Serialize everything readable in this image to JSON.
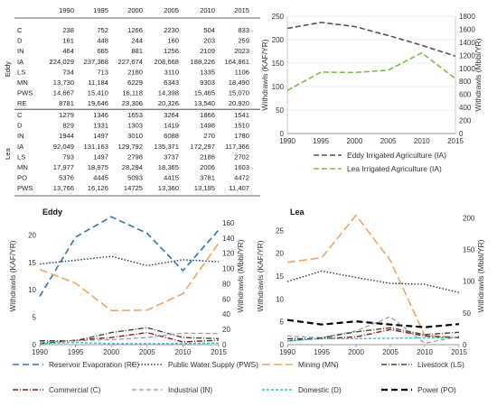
{
  "table": {
    "years": [
      "1990",
      "1995",
      "2000",
      "2005",
      "2010",
      "2015"
    ],
    "groups": [
      {
        "name": "Eddy",
        "rows": [
          {
            "label": "C",
            "values": [
              "238",
              "752",
              "1266",
              "2230",
              "504",
              "833"
            ]
          },
          {
            "label": "D",
            "values": [
              "161",
              "448",
              "244",
              "160",
              "203",
              "259"
            ]
          },
          {
            "label": "IN",
            "values": [
              "464",
              "665",
              "881",
              "1256",
              "2109",
              "2023"
            ]
          },
          {
            "label": "IA",
            "values": [
              "224,029",
              "237,368",
              "227,674",
              "208,668",
              "188,226",
              "164,861"
            ]
          },
          {
            "label": "LS",
            "values": [
              "734",
              "713",
              "2180",
              "3110",
              "1335",
              "1106"
            ]
          },
          {
            "label": "MN",
            "values": [
              "13,730",
              "11,184",
              "6229",
              "6343",
              "9303",
              "18,490"
            ]
          },
          {
            "label": "PWS",
            "values": [
              "14,667",
              "15,410",
              "16,118",
              "14,398",
              "15,465",
              "15,070"
            ]
          },
          {
            "label": "RE",
            "values": [
              "8781",
              "19,646",
              "23,306",
              "20,326",
              "13,540",
              "20,920"
            ]
          }
        ]
      },
      {
        "name": "Lea",
        "rows": [
          {
            "label": "C",
            "values": [
              "1279",
              "1346",
              "1653",
              "3264",
              "1866",
              "1541"
            ]
          },
          {
            "label": "D",
            "values": [
              "829",
              "1331",
              "1303",
              "1419",
              "1498",
              "1510"
            ]
          },
          {
            "label": "IN",
            "values": [
              "1944",
              "1497",
              "3010",
              "6088",
              "270",
              "1780"
            ]
          },
          {
            "label": "IA",
            "values": [
              "92,049",
              "131,163",
              "129,792",
              "135,371",
              "172,297",
              "117,366"
            ]
          },
          {
            "label": "LS",
            "values": [
              "793",
              "1497",
              "2798",
              "3737",
              "2186",
              "2702"
            ]
          },
          {
            "label": "MN",
            "values": [
              "17,977",
              "18,975",
              "28,294",
              "18,365",
              "2006",
              "1603"
            ]
          },
          {
            "label": "PO",
            "values": [
              "5376",
              "4445",
              "5093",
              "4415",
              "3781",
              "4472"
            ]
          },
          {
            "label": "PWS",
            "values": [
              "13,766",
              "16,126",
              "14725",
              "13,360",
              "13,195",
              "11,407"
            ]
          }
        ]
      }
    ]
  },
  "chart_data": [
    {
      "type": "line",
      "title": "",
      "x": [
        1990,
        1995,
        2000,
        2005,
        2010,
        2015
      ],
      "xticks": [
        "1990",
        "1995",
        "2000",
        "2005",
        "2010",
        "2015"
      ],
      "ylabel": "Withdrawls (KAF/YR)",
      "y2label": "Withdrawls (Mbbl/YR)",
      "ylim": [
        0,
        250
      ],
      "yticks": [
        "0",
        "50",
        "100",
        "150",
        "200",
        "250"
      ],
      "y2lim": [
        0,
        1800
      ],
      "y2ticks": [
        "0",
        "200",
        "400",
        "600",
        "800",
        "1000",
        "1200",
        "1400",
        "1600",
        "1800"
      ],
      "series": [
        {
          "name": "Eddy Irrigated Agriculture (IA)",
          "color": "#555555",
          "dash": "6,3",
          "values": [
            224,
            237,
            228,
            209,
            188,
            165
          ]
        },
        {
          "name": "Lea Irrigated Agriculture (IA)",
          "color": "#7ac142",
          "dash": "6,3",
          "values": [
            92,
            131,
            130,
            135,
            172,
            117
          ]
        }
      ],
      "legend_position": "bottom"
    },
    {
      "type": "line",
      "title": "Eddy",
      "x": [
        1990,
        1995,
        2000,
        2005,
        2010,
        2015
      ],
      "xticks": [
        "1990",
        "1995",
        "2000",
        "2005",
        "2010",
        "2015"
      ],
      "ylabel": "Withdrawls (KAF/YR)",
      "y2label": "Withdrawls (Mbbl/YR)",
      "ylim": [
        0,
        25
      ],
      "yticks": [
        "0",
        "5",
        "10",
        "15",
        "20"
      ],
      "y2lim": [
        0,
        180
      ],
      "y2ticks": [
        "0",
        "20",
        "40",
        "60",
        "80",
        "100",
        "120",
        "140",
        "160"
      ],
      "series": [
        {
          "name": "Reservoir Evaporation (RE)",
          "color": "#2e75b6",
          "dash": "7,4",
          "width": 1.6,
          "values": [
            8.8,
            19.6,
            23.3,
            20.3,
            13.5,
            20.9
          ]
        },
        {
          "name": "Public Water Supply (PWS)",
          "color": "#1f3864",
          "dash": "1.5,2",
          "width": 1.4,
          "values": [
            14.7,
            15.4,
            16.1,
            14.4,
            15.5,
            15.1
          ]
        },
        {
          "name": "Mining (MN)",
          "color": "#f4a460",
          "dash": "9,4",
          "width": 1.6,
          "values": [
            13.7,
            11.2,
            6.2,
            6.3,
            9.3,
            18.5
          ]
        },
        {
          "name": "Livestock (LS)",
          "color": "#3d4d2e",
          "dash": "6,2,1,2",
          "width": 1.4,
          "values": [
            0.7,
            0.7,
            2.2,
            3.1,
            1.3,
            1.1
          ]
        },
        {
          "name": "Commercial (C)",
          "color": "#8b1a1a",
          "dash": "6,2,1,2",
          "width": 1.4,
          "values": [
            0.2,
            0.8,
            1.3,
            2.2,
            0.5,
            0.8
          ]
        },
        {
          "name": "Industrial (IN)",
          "color": "#999999",
          "dash": "5,3",
          "width": 1.2,
          "values": [
            0.5,
            0.7,
            0.9,
            1.3,
            2.1,
            2.0
          ]
        },
        {
          "name": "Domestic (D)",
          "color": "#2ec4d6",
          "dash": "3,2",
          "width": 1.4,
          "values": [
            0.2,
            0.4,
            0.2,
            0.2,
            0.2,
            0.3
          ]
        }
      ]
    },
    {
      "type": "line",
      "title": "Lea",
      "x": [
        1990,
        1995,
        2000,
        2005,
        2010,
        2015
      ],
      "xticks": [
        "1990",
        "1995",
        "2000",
        "2005",
        "2010",
        "2015"
      ],
      "ylabel": "Withdrawls (KAF/YR)",
      "y2label": "Withdrawls (Mbbl/YR)",
      "ylim": [
        0,
        30
      ],
      "yticks": [
        "0",
        "5",
        "10",
        "15",
        "20",
        "25"
      ],
      "y2lim": [
        0,
        216
      ],
      "y2ticks": [
        "0",
        "50",
        "100",
        "150",
        "200"
      ],
      "series": [
        {
          "name": "Mining (MN)",
          "color": "#f4a460",
          "dash": "9,4",
          "width": 1.6,
          "values": [
            18.0,
            19.0,
            28.3,
            18.4,
            2.0,
            1.6
          ]
        },
        {
          "name": "Public Water Supply (PWS)",
          "color": "#1f3864",
          "dash": "1.5,2",
          "width": 1.4,
          "values": [
            13.8,
            16.1,
            14.7,
            13.4,
            13.2,
            11.4
          ]
        },
        {
          "name": "Power (PO)",
          "color": "#000000",
          "dash": "7,4",
          "width": 2.2,
          "values": [
            5.4,
            4.4,
            5.1,
            4.4,
            3.8,
            4.5
          ]
        },
        {
          "name": "Industrial (IN)",
          "color": "#999999",
          "dash": "5,3",
          "width": 1.2,
          "values": [
            1.9,
            1.5,
            3.0,
            6.1,
            0.3,
            1.8
          ]
        },
        {
          "name": "Livestock (LS)",
          "color": "#3d4d2e",
          "dash": "6,2,1,2",
          "width": 1.4,
          "values": [
            0.8,
            1.5,
            2.8,
            3.7,
            2.2,
            2.7
          ]
        },
        {
          "name": "Commercial (C)",
          "color": "#8b1a1a",
          "dash": "6,2,1,2",
          "width": 1.4,
          "values": [
            1.3,
            1.3,
            1.7,
            3.3,
            1.9,
            1.5
          ]
        },
        {
          "name": "Domestic (D)",
          "color": "#2ec4d6",
          "dash": "3,2",
          "width": 1.4,
          "values": [
            0.8,
            1.3,
            1.3,
            1.4,
            1.5,
            1.5
          ]
        }
      ]
    }
  ],
  "legend": [
    {
      "name": "Reservoir Evaporation (RE)",
      "color": "#2e75b6",
      "dash": "7,4",
      "width": 1.6
    },
    {
      "name": "Public Water Supply (PWS)",
      "color": "#1f3864",
      "dash": "1.5,2",
      "width": 1.4
    },
    {
      "name": "Mining (MN)",
      "color": "#f4a460",
      "dash": "9,4",
      "width": 1.6
    },
    {
      "name": "Livestock (LS)",
      "color": "#3d4d2e",
      "dash": "6,2,1,2",
      "width": 1.4
    },
    {
      "name": "Commercial (C)",
      "color": "#8b1a1a",
      "dash": "6,2,1,2",
      "width": 1.4
    },
    {
      "name": "Industrial (IN)",
      "color": "#999999",
      "dash": "5,3",
      "width": 1.2
    },
    {
      "name": "Domestic (D)",
      "color": "#2ec4d6",
      "dash": "3,2",
      "width": 1.4
    },
    {
      "name": "Power (PO)",
      "color": "#000000",
      "dash": "7,4",
      "width": 2.2
    }
  ]
}
